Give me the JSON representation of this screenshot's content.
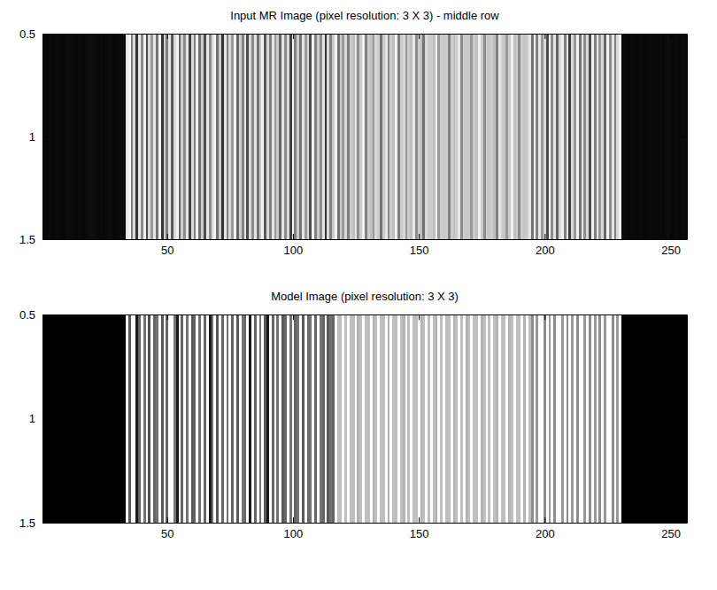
{
  "chart_data": [
    {
      "type": "heatmap",
      "title": "Input MR Image (pixel resolution: 3 X 3) - middle row",
      "color": "gray",
      "xlim": [
        0.5,
        256.5
      ],
      "xticks": [
        50,
        100,
        150,
        200,
        250
      ],
      "ylim": [
        1.5,
        0.5
      ],
      "yticks": [
        0.5,
        1,
        1.5
      ],
      "clim": [
        0,
        1
      ],
      "x": [
        1,
        2,
        3,
        4,
        5,
        6,
        7,
        8,
        9,
        10,
        11,
        12,
        13,
        14,
        15,
        16,
        17,
        18,
        19,
        20,
        21,
        22,
        23,
        24,
        25,
        26,
        27,
        28,
        29,
        30,
        31,
        32,
        33,
        34,
        35,
        36,
        37,
        38,
        39,
        40,
        41,
        42,
        43,
        44,
        45,
        46,
        47,
        48,
        49,
        50,
        51,
        52,
        53,
        54,
        55,
        56,
        57,
        58,
        59,
        60,
        61,
        62,
        63,
        64,
        65,
        66,
        67,
        68,
        69,
        70,
        71,
        72,
        73,
        74,
        75,
        76,
        77,
        78,
        79,
        80,
        81,
        82,
        83,
        84,
        85,
        86,
        87,
        88,
        89,
        90,
        91,
        92,
        93,
        94,
        95,
        96,
        97,
        98,
        99,
        100,
        101,
        102,
        103,
        104,
        105,
        106,
        107,
        108,
        109,
        110,
        111,
        112,
        113,
        114,
        115,
        116,
        117,
        118,
        119,
        120,
        121,
        122,
        123,
        124,
        125,
        126,
        127,
        128,
        129,
        130,
        131,
        132,
        133,
        134,
        135,
        136,
        137,
        138,
        139,
        140,
        141,
        142,
        143,
        144,
        145,
        146,
        147,
        148,
        149,
        150,
        151,
        152,
        153,
        154,
        155,
        156,
        157,
        158,
        159,
        160,
        161,
        162,
        163,
        164,
        165,
        166,
        167,
        168,
        169,
        170,
        171,
        172,
        173,
        174,
        175,
        176,
        177,
        178,
        179,
        180,
        181,
        182,
        183,
        184,
        185,
        186,
        187,
        188,
        189,
        190,
        191,
        192,
        193,
        194,
        195,
        196,
        197,
        198,
        199,
        200,
        201,
        202,
        203,
        204,
        205,
        206,
        207,
        208,
        209,
        210,
        211,
        212,
        213,
        214,
        215,
        216,
        217,
        218,
        219,
        220,
        221,
        222,
        223,
        224,
        225,
        226,
        227,
        228,
        229,
        230,
        231,
        232,
        233,
        234,
        235,
        236,
        237,
        238,
        239,
        240,
        241,
        242,
        243,
        244,
        245,
        246,
        247,
        248,
        249,
        250,
        251,
        252,
        253,
        254,
        255,
        256
      ],
      "y": [
        1
      ],
      "cells": [
        [
          0.03,
          0.03,
          0.04,
          0.03,
          0.03,
          0.04,
          0.04,
          0.03,
          0.03,
          0.04,
          0.05,
          0.04,
          0.03,
          0.03,
          0.04,
          0.03,
          0.03,
          0.04,
          0.05,
          0.06,
          0.05,
          0.04,
          0.03,
          0.04,
          0.03,
          0.04,
          0.05,
          0.04,
          0.03,
          0.03,
          0.04,
          0.03,
          0.03,
          0.9,
          0.95,
          0.5,
          0.85,
          0.2,
          0.9,
          0.55,
          0.95,
          0.3,
          0.85,
          0.6,
          0.9,
          0.45,
          0.95,
          0.2,
          0.8,
          0.5,
          0.9,
          0.35,
          0.85,
          0.95,
          0.4,
          0.8,
          0.55,
          0.9,
          0.25,
          0.85,
          0.5,
          0.95,
          0.45,
          0.8,
          0.3,
          0.9,
          0.55,
          0.85,
          0.95,
          0.45,
          0.8,
          0.2,
          0.9,
          0.5,
          0.85,
          0.6,
          0.95,
          0.4,
          0.8,
          0.5,
          0.9,
          0.3,
          0.85,
          0.55,
          0.9,
          0.45,
          0.8,
          0.95,
          0.35,
          0.85,
          0.5,
          0.9,
          0.6,
          0.8,
          0.4,
          0.9,
          0.55,
          0.85,
          0.25,
          0.95,
          0.5,
          0.8,
          0.45,
          0.9,
          0.6,
          0.85,
          0.3,
          0.95,
          0.5,
          0.8,
          0.55,
          0.9,
          0.2,
          0.85,
          0.5,
          0.8,
          0.95,
          0.45,
          0.8,
          0.6,
          0.85,
          0.5,
          0.8,
          0.75,
          0.9,
          0.55,
          0.8,
          0.95,
          0.5,
          0.8,
          0.75,
          0.6,
          0.85,
          0.8,
          0.45,
          0.8,
          0.9,
          0.55,
          0.8,
          0.75,
          0.95,
          0.5,
          0.8,
          0.85,
          0.6,
          0.8,
          0.75,
          0.9,
          0.55,
          0.8,
          0.75,
          0.45,
          0.85,
          0.8,
          0.8,
          0.75,
          0.95,
          0.6,
          0.8,
          0.78,
          0.8,
          0.5,
          0.8,
          0.75,
          0.8,
          0.9,
          0.55,
          0.8,
          0.78,
          0.8,
          0.6,
          0.8,
          0.75,
          0.95,
          0.8,
          0.55,
          0.8,
          0.78,
          0.8,
          0.75,
          0.5,
          0.9,
          0.8,
          0.78,
          0.6,
          0.8,
          0.95,
          0.75,
          0.8,
          0.55,
          0.8,
          0.78,
          0.8,
          0.9,
          0.45,
          0.95,
          0.5,
          0.9,
          0.6,
          0.85,
          0.3,
          0.95,
          0.55,
          0.9,
          0.4,
          0.85,
          0.95,
          0.5,
          0.9,
          0.25,
          0.85,
          0.6,
          0.95,
          0.45,
          0.9,
          0.55,
          0.85,
          0.3,
          0.95,
          0.5,
          0.9,
          0.6,
          0.85,
          0.4,
          0.95,
          0.55,
          0.9,
          0.5,
          0.85,
          0.95,
          0.04,
          0.04,
          0.03,
          0.03,
          0.04,
          0.03,
          0.03,
          0.04,
          0.03,
          0.03,
          0.04,
          0.04,
          0.03,
          0.03,
          0.03,
          0.04,
          0.03,
          0.04,
          0.05,
          0.04,
          0.03,
          0.04,
          0.04,
          0.03,
          0.04,
          0.03
        ]
      ]
    },
    {
      "type": "heatmap",
      "title": "Model Image (pixel resolution: 3 X 3)",
      "color": "gray",
      "xlim": [
        0.5,
        256.5
      ],
      "xticks": [
        50,
        100,
        150,
        200,
        250
      ],
      "ylim": [
        1.5,
        0.5
      ],
      "yticks": [
        0.5,
        1,
        1.5
      ],
      "clim": [
        0,
        1
      ],
      "x": [
        1,
        2,
        3,
        4,
        5,
        6,
        7,
        8,
        9,
        10,
        11,
        12,
        13,
        14,
        15,
        16,
        17,
        18,
        19,
        20,
        21,
        22,
        23,
        24,
        25,
        26,
        27,
        28,
        29,
        30,
        31,
        32,
        33,
        34,
        35,
        36,
        37,
        38,
        39,
        40,
        41,
        42,
        43,
        44,
        45,
        46,
        47,
        48,
        49,
        50,
        51,
        52,
        53,
        54,
        55,
        56,
        57,
        58,
        59,
        60,
        61,
        62,
        63,
        64,
        65,
        66,
        67,
        68,
        69,
        70,
        71,
        72,
        73,
        74,
        75,
        76,
        77,
        78,
        79,
        80,
        81,
        82,
        83,
        84,
        85,
        86,
        87,
        88,
        89,
        90,
        91,
        92,
        93,
        94,
        95,
        96,
        97,
        98,
        99,
        100,
        101,
        102,
        103,
        104,
        105,
        106,
        107,
        108,
        109,
        110,
        111,
        112,
        113,
        114,
        115,
        116,
        117,
        118,
        119,
        120,
        121,
        122,
        123,
        124,
        125,
        126,
        127,
        128,
        129,
        130,
        131,
        132,
        133,
        134,
        135,
        136,
        137,
        138,
        139,
        140,
        141,
        142,
        143,
        144,
        145,
        146,
        147,
        148,
        149,
        150,
        151,
        152,
        153,
        154,
        155,
        156,
        157,
        158,
        159,
        160,
        161,
        162,
        163,
        164,
        165,
        166,
        167,
        168,
        169,
        170,
        171,
        172,
        173,
        174,
        175,
        176,
        177,
        178,
        179,
        180,
        181,
        182,
        183,
        184,
        185,
        186,
        187,
        188,
        189,
        190,
        191,
        192,
        193,
        194,
        195,
        196,
        197,
        198,
        199,
        200,
        201,
        202,
        203,
        204,
        205,
        206,
        207,
        208,
        209,
        210,
        211,
        212,
        213,
        214,
        215,
        216,
        217,
        218,
        219,
        220,
        221,
        222,
        223,
        224,
        225,
        226,
        227,
        228,
        229,
        230,
        231,
        232,
        233,
        234,
        235,
        236,
        237,
        238,
        239,
        240,
        241,
        242,
        243,
        244,
        245,
        246,
        247,
        248,
        249,
        250,
        251,
        252,
        253,
        254,
        255,
        256
      ],
      "y": [
        1
      ],
      "cells": [
        [
          0,
          0,
          0,
          0,
          0,
          0,
          0,
          0,
          0,
          0,
          0,
          0,
          0,
          0,
          0,
          0,
          0,
          0,
          0,
          0,
          0,
          0,
          0,
          0,
          0,
          0,
          0,
          0,
          0,
          0,
          0,
          0,
          0,
          1,
          0.35,
          1,
          1,
          0.1,
          0.4,
          1,
          0.45,
          1,
          0.3,
          1,
          0.4,
          0.45,
          1,
          0.35,
          1,
          0.4,
          1,
          1,
          0.45,
          0.1,
          1,
          0.4,
          1,
          0.45,
          1,
          0.35,
          0.4,
          1,
          0.45,
          1,
          0.4,
          1,
          0.1,
          0.45,
          1,
          0.35,
          1,
          0.4,
          1,
          0.45,
          1,
          0.4,
          1,
          0.35,
          1,
          0.45,
          0.4,
          1,
          0.1,
          1,
          0.4,
          1,
          0.45,
          1,
          0.35,
          0.1,
          1,
          0.4,
          1,
          0.45,
          1,
          0.35,
          0.4,
          1,
          0.45,
          1,
          0.4,
          0.45,
          1,
          0.35,
          1,
          0.4,
          0.45,
          1,
          0.4,
          1,
          0.45,
          0.4,
          1,
          0.35,
          0.45,
          0.4,
          1,
          0.75,
          0.75,
          1,
          0.75,
          1,
          0.75,
          0.75,
          1,
          0.7,
          0.75,
          1,
          0.75,
          0.75,
          1,
          0.7,
          0.75,
          1,
          0.75,
          0.75,
          1,
          0.7,
          1,
          0.75,
          0.75,
          1,
          0.75,
          0.7,
          1,
          0.75,
          1,
          0.75,
          0.75,
          1,
          0.7,
          0.75,
          1,
          0.75,
          1,
          0.75,
          0.7,
          1,
          0.75,
          1,
          0.75,
          0.75,
          1,
          0.7,
          0.75,
          1,
          0.75,
          1,
          0.7,
          0.75,
          1,
          0.75,
          0.75,
          1,
          0.7,
          0.75,
          1,
          0.75,
          1,
          0.75,
          0.7,
          1,
          0.75,
          0.75,
          1,
          0.7,
          0.75,
          1,
          0.75,
          0.75,
          1,
          0.7,
          1,
          0.75,
          0.55,
          1,
          0.6,
          1,
          1,
          0.55,
          1,
          0.6,
          1,
          0.55,
          1,
          1,
          0.6,
          1,
          0.55,
          1,
          0.6,
          1,
          0.55,
          1,
          1,
          0.6,
          1,
          0.55,
          1,
          0.6,
          1,
          0.55,
          1,
          0.6,
          1,
          1,
          0.55,
          1,
          0.6,
          1,
          0,
          0,
          0,
          0,
          0,
          0,
          0,
          0,
          0,
          0,
          0,
          0,
          0,
          0,
          0,
          0,
          0,
          0,
          0,
          0,
          0,
          0,
          0,
          0,
          0,
          0
        ]
      ]
    }
  ]
}
